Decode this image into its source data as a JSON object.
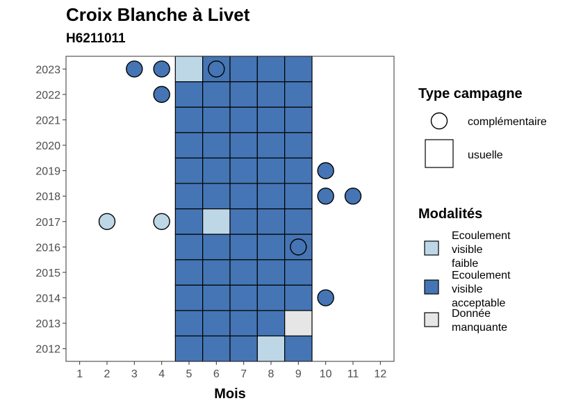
{
  "chart_data": {
    "type": "heatmap",
    "title": "Croix Blanche à Livet",
    "subtitle": "H6211011",
    "xlabel": "Mois",
    "ylabel": "",
    "x_ticks": [
      "1",
      "2",
      "3",
      "4",
      "5",
      "6",
      "7",
      "8",
      "9",
      "10",
      "11",
      "12"
    ],
    "y_ticks": [
      "2012",
      "2013",
      "2014",
      "2015",
      "2016",
      "2017",
      "2018",
      "2019",
      "2020",
      "2021",
      "2022",
      "2023"
    ],
    "xlim": [
      0.5,
      12.5
    ],
    "ylim": [
      2011.5,
      2023.5
    ],
    "colors": {
      "Ecoulement visible faible": "#bdd7e7",
      "Ecoulement visible acceptable": "#4575b4",
      "Donnée manquante": "#e6e6e6"
    },
    "usuelle": [
      {
        "year": 2012,
        "months": [
          5,
          6,
          7,
          8,
          9
        ],
        "values": [
          "acc",
          "acc",
          "acc",
          "faible",
          "acc"
        ]
      },
      {
        "year": 2013,
        "months": [
          5,
          6,
          7,
          8,
          9
        ],
        "values": [
          "acc",
          "acc",
          "acc",
          "acc",
          "nd"
        ]
      },
      {
        "year": 2014,
        "months": [
          5,
          6,
          7,
          8,
          9
        ],
        "values": [
          "acc",
          "acc",
          "acc",
          "acc",
          "acc"
        ]
      },
      {
        "year": 2015,
        "months": [
          5,
          6,
          7,
          8,
          9
        ],
        "values": [
          "acc",
          "acc",
          "acc",
          "acc",
          "acc"
        ]
      },
      {
        "year": 2016,
        "months": [
          5,
          6,
          7,
          8,
          9
        ],
        "values": [
          "acc",
          "acc",
          "acc",
          "acc",
          "acc"
        ]
      },
      {
        "year": 2017,
        "months": [
          5,
          6,
          7,
          8,
          9
        ],
        "values": [
          "acc",
          "faible",
          "acc",
          "acc",
          "acc"
        ]
      },
      {
        "year": 2018,
        "months": [
          5,
          6,
          7,
          8,
          9
        ],
        "values": [
          "acc",
          "acc",
          "acc",
          "acc",
          "acc"
        ]
      },
      {
        "year": 2019,
        "months": [
          5,
          6,
          7,
          8,
          9
        ],
        "values": [
          "acc",
          "acc",
          "acc",
          "acc",
          "acc"
        ]
      },
      {
        "year": 2020,
        "months": [
          5,
          6,
          7,
          8,
          9
        ],
        "values": [
          "acc",
          "acc",
          "acc",
          "acc",
          "acc"
        ]
      },
      {
        "year": 2021,
        "months": [
          5,
          6,
          7,
          8,
          9
        ],
        "values": [
          "acc",
          "acc",
          "acc",
          "acc",
          "acc"
        ]
      },
      {
        "year": 2022,
        "months": [
          5,
          6,
          7,
          8,
          9
        ],
        "values": [
          "acc",
          "acc",
          "acc",
          "acc",
          "acc"
        ]
      },
      {
        "year": 2023,
        "months": [
          5,
          6,
          7,
          8,
          9
        ],
        "values": [
          "faible",
          "acc",
          "acc",
          "acc",
          "acc"
        ]
      }
    ],
    "complementaire": [
      {
        "year": 2023,
        "month": 3,
        "value": "acc"
      },
      {
        "year": 2023,
        "month": 4,
        "value": "acc"
      },
      {
        "year": 2023,
        "month": 6,
        "value": "acc"
      },
      {
        "year": 2022,
        "month": 4,
        "value": "acc"
      },
      {
        "year": 2019,
        "month": 10,
        "value": "acc"
      },
      {
        "year": 2018,
        "month": 10,
        "value": "acc"
      },
      {
        "year": 2018,
        "month": 11,
        "value": "acc"
      },
      {
        "year": 2017,
        "month": 2,
        "value": "faible"
      },
      {
        "year": 2017,
        "month": 4,
        "value": "faible"
      },
      {
        "year": 2016,
        "month": 9,
        "value": "acc"
      },
      {
        "year": 2014,
        "month": 10,
        "value": "acc"
      }
    ],
    "legend": {
      "placement": "right",
      "type_title": "Type campagne",
      "type_items": [
        "complémentaire",
        "usuelle"
      ],
      "mod_title": "Modalités",
      "mod_items": [
        {
          "key": "faible",
          "lines": [
            "Ecoulement",
            "visible",
            "faible"
          ]
        },
        {
          "key": "acc",
          "lines": [
            "Ecoulement",
            "visible",
            "acceptable"
          ]
        },
        {
          "key": "nd",
          "lines": [
            "Donnée",
            "manquante"
          ]
        }
      ]
    }
  }
}
